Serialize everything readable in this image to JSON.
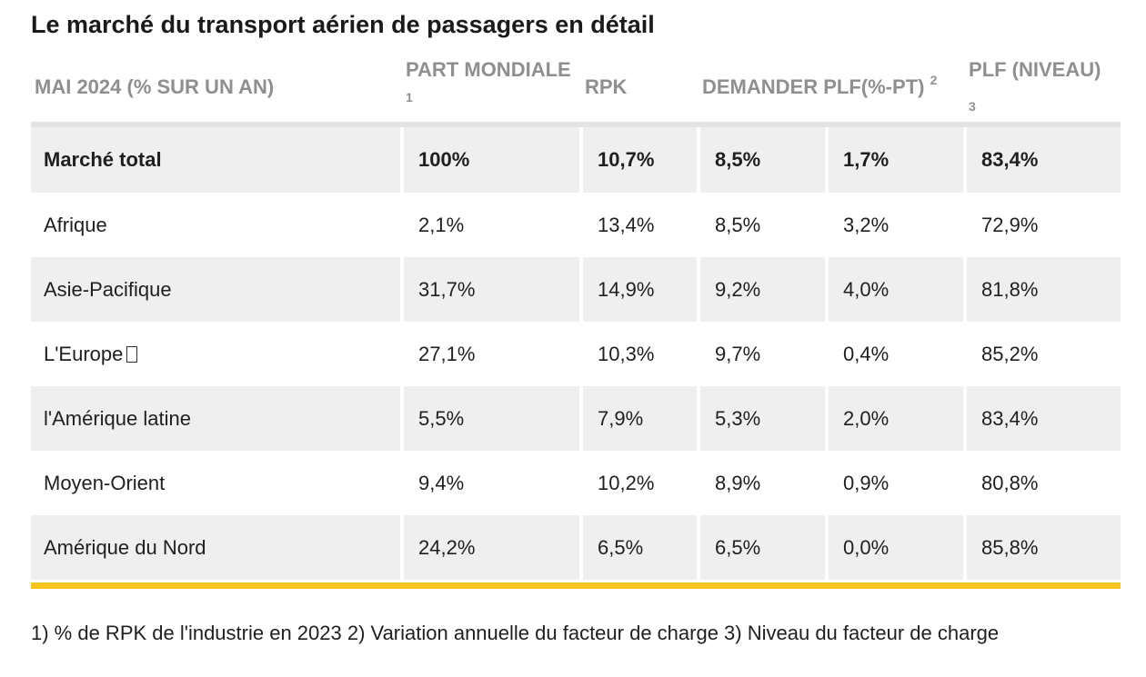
{
  "title": "Le marché du transport aérien de passagers en détail",
  "table": {
    "headers": [
      {
        "label": "MAI 2024 (% SUR UN AN)",
        "sup": ""
      },
      {
        "label": "PART MONDIALE",
        "sup": "1"
      },
      {
        "label": "RPK",
        "sup": ""
      },
      {
        "label": "DEMANDER PLF(%-PT)",
        "sup": "2"
      },
      {
        "label": "PLF (NIVEAU)",
        "sup": "3"
      }
    ],
    "rows": [
      {
        "region": "Marché total",
        "part": "100%",
        "rpk": "10,7%",
        "demander": "8,5%",
        "plf_pt": "1,7%",
        "plf_niveau": "83,4%"
      },
      {
        "region": "Afrique",
        "part": "2,1%",
        "rpk": "13,4%",
        "demander": "8,5%",
        "plf_pt": "3,2%",
        "plf_niveau": "72,9%"
      },
      {
        "region": "Asie-Pacifique",
        "part": "31,7%",
        "rpk": "14,9%",
        "demander": "9,2%",
        "plf_pt": "4,0%",
        "plf_niveau": "81,8%"
      },
      {
        "region": "L'Europe",
        "part": "27,1%",
        "rpk": "10,3%",
        "demander": "9,7%",
        "plf_pt": "0,4%",
        "plf_niveau": "85,2%"
      },
      {
        "region": "l'Amérique latine",
        "part": "5,5%",
        "rpk": "7,9%",
        "demander": "5,3%",
        "plf_pt": "2,0%",
        "plf_niveau": "83,4%"
      },
      {
        "region": "Moyen-Orient",
        "part": "9,4%",
        "rpk": "10,2%",
        "demander": "8,9%",
        "plf_pt": "0,9%",
        "plf_niveau": "80,8%"
      },
      {
        "region": "Amérique du Nord",
        "part": "24,2%",
        "rpk": "6,5%",
        "demander": "6,5%",
        "plf_pt": "0,0%",
        "plf_niveau": "85,8%"
      }
    ]
  },
  "footnote": "1) % de RPK de l'industrie en 2023 2) Variation annuelle du facteur de charge 3) Niveau du facteur de charge",
  "colors": {
    "accent_bar": "#f7c520",
    "header_text": "#8f8f8f",
    "stripe": "#efefef"
  },
  "icons": {
    "europe_glyph": "missing-glyph-icon"
  }
}
